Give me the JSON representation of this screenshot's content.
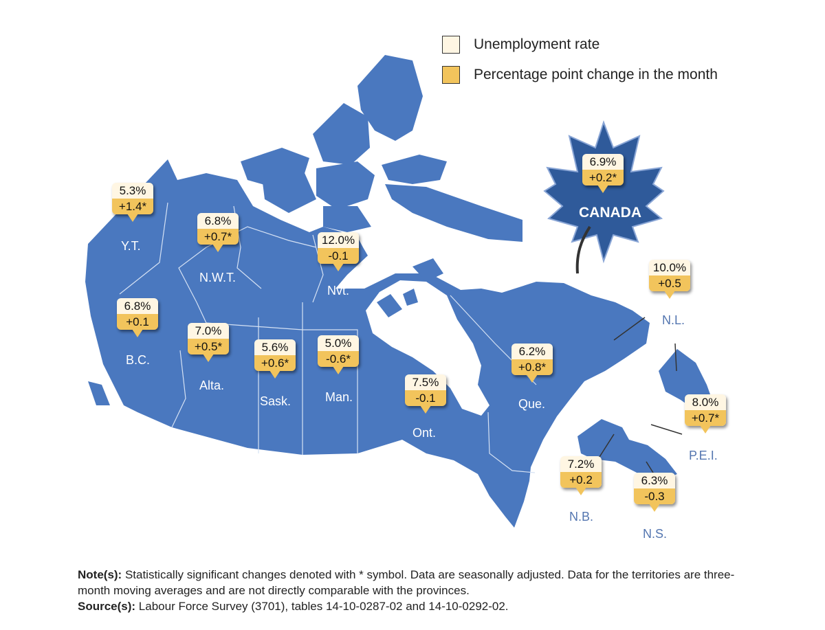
{
  "legend": {
    "rate_label": "Unemployment rate",
    "change_label": "Percentage point change in the month",
    "rate_color": "#fff6e3",
    "change_color": "#f2c45c"
  },
  "colors": {
    "land": "#4a78bf",
    "border": "#d6e2f4",
    "leaf": "#2f5a9a"
  },
  "regions": {
    "yt": {
      "label": "Y.T.",
      "rate": "5.3%",
      "change": "+1.4*"
    },
    "nwt": {
      "label": "N.W.T.",
      "rate": "6.8%",
      "change": "+0.7*"
    },
    "nvt": {
      "label": "Nvt.",
      "rate": "12.0%",
      "change": "-0.1"
    },
    "bc": {
      "label": "B.C.",
      "rate": "6.8%",
      "change": "+0.1"
    },
    "alta": {
      "label": "Alta.",
      "rate": "7.0%",
      "change": "+0.5*"
    },
    "sask": {
      "label": "Sask.",
      "rate": "5.6%",
      "change": "+0.6*"
    },
    "man": {
      "label": "Man.",
      "rate": "5.0%",
      "change": "-0.6*"
    },
    "ont": {
      "label": "Ont.",
      "rate": "7.5%",
      "change": "-0.1"
    },
    "que": {
      "label": "Que.",
      "rate": "6.2%",
      "change": "+0.8*"
    },
    "nl": {
      "label": "N.L.",
      "rate": "10.0%",
      "change": "+0.5"
    },
    "pei": {
      "label": "P.E.I.",
      "rate": "8.0%",
      "change": "+0.7*"
    },
    "nb": {
      "label": "N.B.",
      "rate": "7.2%",
      "change": "+0.2"
    },
    "ns": {
      "label": "N.S.",
      "rate": "6.3%",
      "change": "-0.3"
    },
    "canada": {
      "label": "CANADA",
      "rate": "6.9%",
      "change": "+0.2*"
    }
  },
  "notes": {
    "note_head": "Note(s):",
    "note_text": " Statistically significant changes denoted with * symbol. Data are seasonally adjusted. Data for the territories are three-month moving averages and are not directly comparable with the provinces.",
    "source_head": "Source(s):",
    "source_text": " Labour Force Survey (3701), tables 14-10-0287-02 and 14-10-0292-02."
  }
}
